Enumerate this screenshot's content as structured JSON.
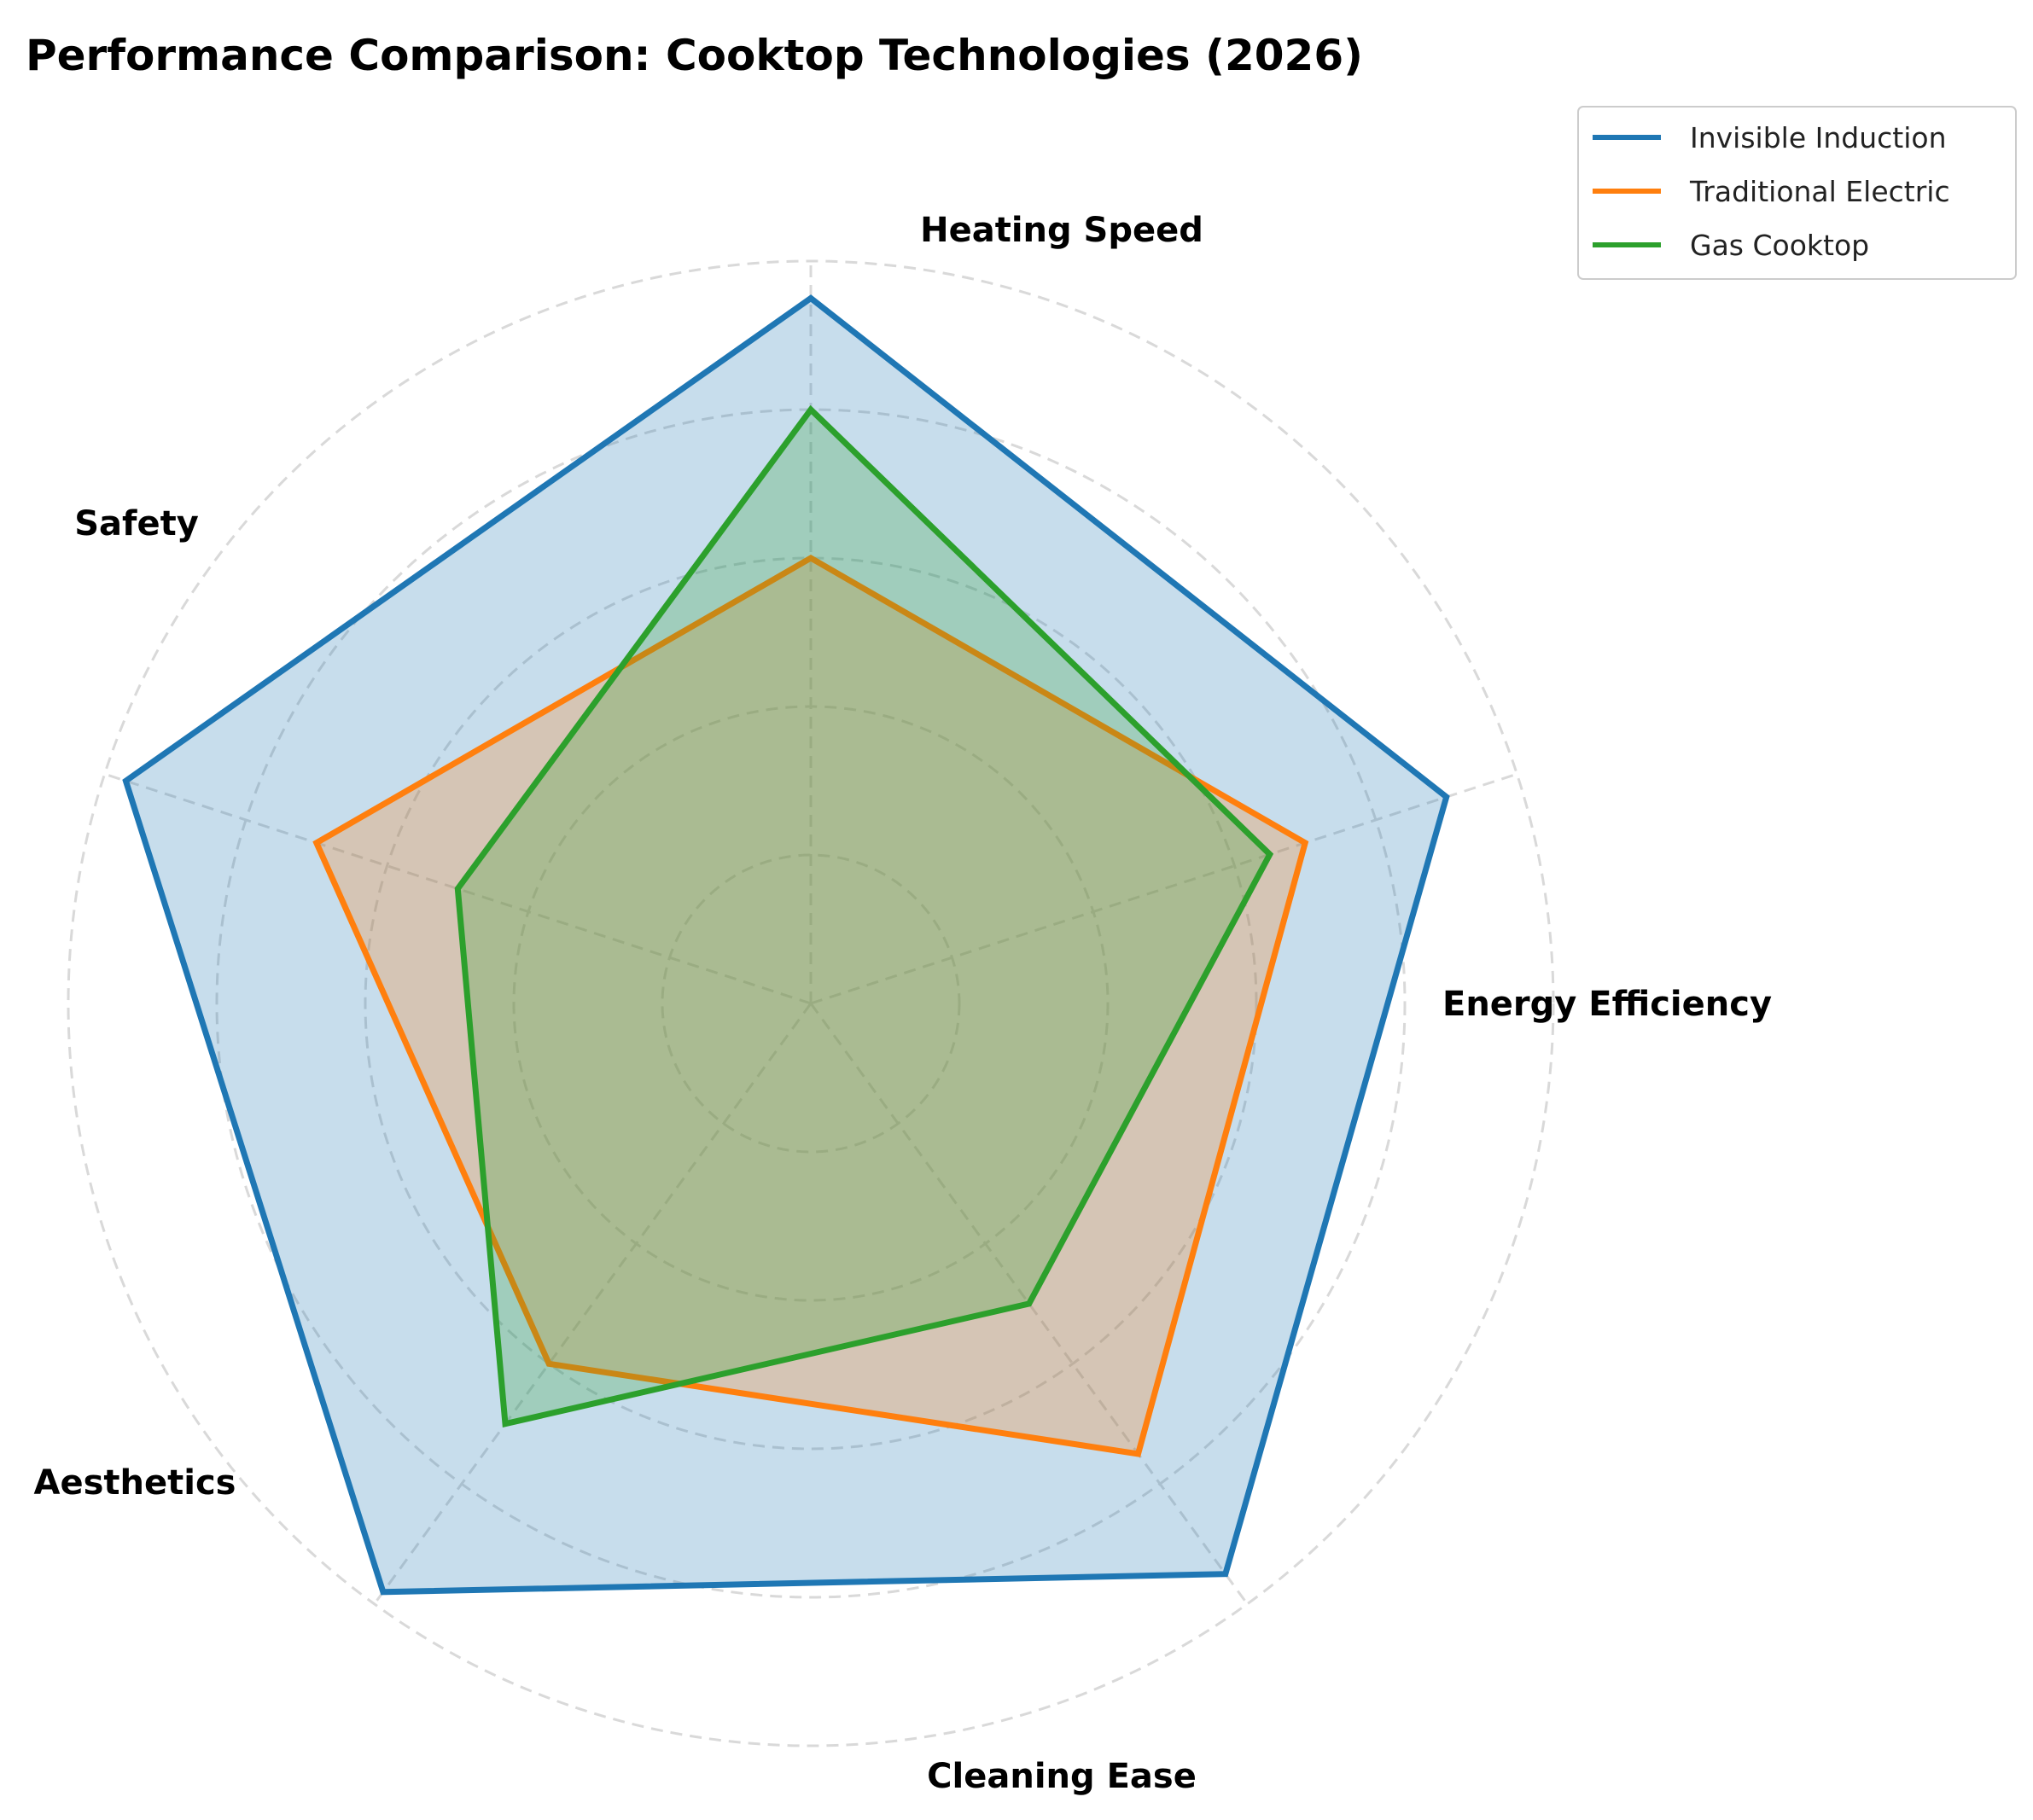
{
  "chart_data": {
    "type": "radar",
    "title": "Performance Comparison: Cooktop Technologies (2026)",
    "categories": [
      "Energy Efficiency",
      "Heating Speed",
      "Safety",
      "Aesthetics",
      "Cleaning Ease"
    ],
    "series": [
      {
        "name": "Invisible Induction",
        "values": [
          9,
          9.5,
          9.7,
          9.8,
          9.5
        ],
        "color": "#1f77b4"
      },
      {
        "name": "Traditional Electric",
        "values": [
          7,
          6,
          7,
          6,
          7.5
        ],
        "color": "#ff7f0e"
      },
      {
        "name": "Gas Cooktop",
        "values": [
          6.5,
          8,
          5,
          7,
          5
        ],
        "color": "#2ca02c"
      }
    ],
    "rlim": [
      0,
      10
    ],
    "ring_values": [
      2,
      4,
      6,
      8,
      10
    ],
    "grid": true,
    "legend_position": "top-right"
  }
}
